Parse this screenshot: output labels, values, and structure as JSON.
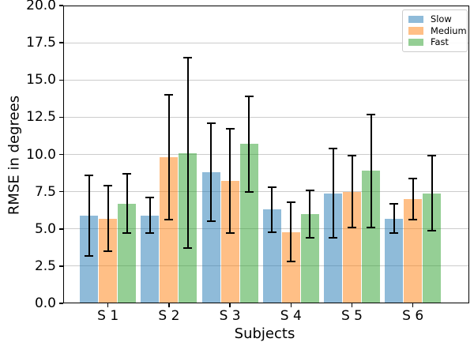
{
  "chart_data": {
    "type": "bar",
    "title": "",
    "xlabel": "Subjects",
    "ylabel": "RMSE in degrees",
    "categories": [
      "S 1",
      "S 2",
      "S 3",
      "S 4",
      "S 5",
      "S 6"
    ],
    "series": [
      {
        "name": "Slow",
        "color": "#1f77b4",
        "alpha": 0.5,
        "values": [
          5.9,
          5.9,
          8.8,
          6.3,
          7.4,
          5.7
        ],
        "errors": [
          2.7,
          1.2,
          3.3,
          1.5,
          3.0,
          1.0
        ]
      },
      {
        "name": "Medium",
        "color": "#ff7f0e",
        "alpha": 0.5,
        "values": [
          5.7,
          9.8,
          8.2,
          4.8,
          7.5,
          7.0
        ],
        "errors": [
          2.2,
          4.2,
          3.5,
          2.0,
          2.4,
          1.4
        ]
      },
      {
        "name": "Fast",
        "color": "#2ca02c",
        "alpha": 0.5,
        "values": [
          6.7,
          10.1,
          10.7,
          6.0,
          8.9,
          7.4
        ],
        "errors": [
          2.0,
          6.4,
          3.2,
          1.6,
          3.8,
          2.5
        ]
      }
    ],
    "error_bar_color": "#000000",
    "ylim": [
      0,
      20
    ],
    "yticks": [
      0.0,
      2.5,
      5.0,
      7.5,
      10.0,
      12.5,
      15.0,
      17.5,
      20.0
    ],
    "ytick_labels": [
      "0.0",
      "2.5",
      "5.0",
      "7.5",
      "10.0",
      "12.5",
      "15.0",
      "17.5",
      "20.0"
    ],
    "grid": true,
    "grid_color": "#cccccc",
    "legend_position": "upper right",
    "legend_labels": [
      "Slow",
      "Medium",
      "Fast"
    ]
  }
}
